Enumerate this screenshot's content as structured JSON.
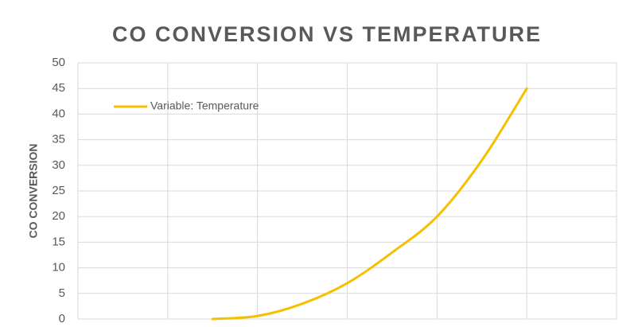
{
  "chart_data": {
    "type": "line",
    "title": "CO CONVERSION VS TEMPERATURE",
    "ylabel": "CO CONVERSION",
    "series": [
      {
        "name": "Variable: Temperature",
        "color": "#f5c000",
        "x": [
          1.5,
          2,
          2.5,
          3,
          3.5,
          4,
          4.5,
          5
        ],
        "values": [
          0,
          0.6,
          3,
          7,
          13,
          20,
          31,
          45
        ]
      }
    ],
    "xlim": [
      0,
      6
    ],
    "xticks": [
      0,
      1,
      2,
      3,
      4,
      5,
      6
    ],
    "ylim": [
      0,
      50
    ],
    "yticks": [
      0,
      5,
      10,
      15,
      20,
      25,
      30,
      35,
      40,
      45,
      50
    ],
    "grid": true,
    "legend": "top-left"
  }
}
